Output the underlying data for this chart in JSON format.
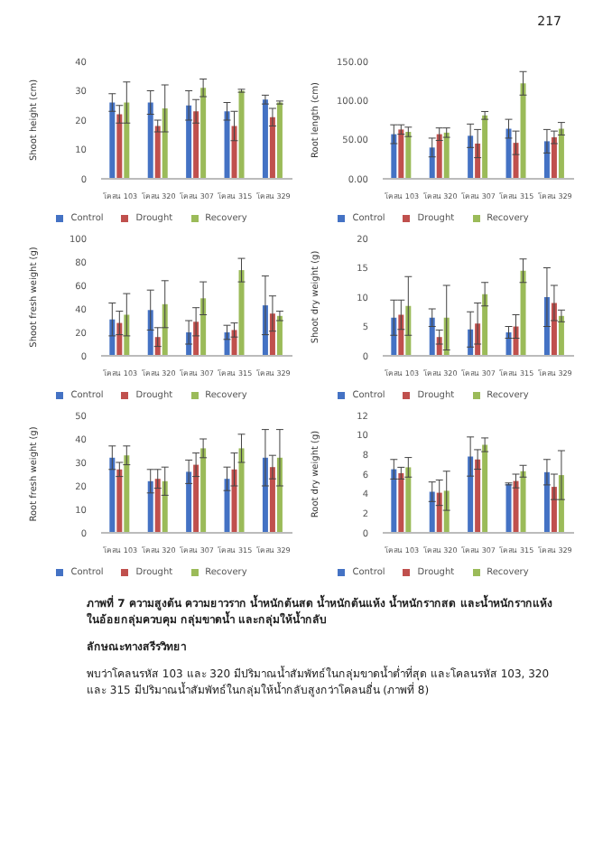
{
  "chart_data": [
    {
      "type": "bar",
      "ylabel": "Shoot height (cm)",
      "categories": [
        "โคลน 103",
        "โคลน 320",
        "โคลน 307",
        "โคลน 315",
        "โคลน 329"
      ],
      "ylim": [
        0,
        40
      ],
      "yticks": [
        0,
        10,
        20,
        30,
        40
      ],
      "legend": "bottom",
      "annotations": [
        "217"
      ],
      "series": [
        {
          "name": "Control",
          "color": "#4472c4",
          "values": [
            26,
            26,
            25,
            23,
            27
          ],
          "errors": [
            3,
            4,
            5,
            3,
            1.5
          ]
        },
        {
          "name": "Drought",
          "color": "#c0504d",
          "values": [
            22,
            18,
            23,
            18,
            21
          ],
          "errors": [
            3,
            2,
            4,
            5,
            3
          ]
        },
        {
          "name": "Recovery",
          "color": "#9bbb59",
          "values": [
            26,
            24,
            31,
            30,
            26
          ],
          "errors": [
            7,
            8,
            3,
            0.5,
            0.5
          ]
        }
      ]
    },
    {
      "type": "bar",
      "ylabel": "Root length (cm)",
      "categories": [
        "โคลน 103",
        "โคลน 320",
        "โคลน 307",
        "โคลน 315",
        "โคลน 329"
      ],
      "ylim": [
        0,
        150
      ],
      "yticks": [
        {
          "value": 0,
          "label": "0.00"
        },
        {
          "value": 50,
          "label": "50.00"
        },
        {
          "value": 100,
          "label": "100.00"
        },
        {
          "value": 150,
          "label": "150.00"
        }
      ],
      "legend": "bottom",
      "series": [
        {
          "name": "Control",
          "color": "#4472c4",
          "values": [
            57,
            40,
            55,
            64,
            48
          ],
          "errors": [
            12,
            12,
            15,
            12,
            15
          ]
        },
        {
          "name": "Drought",
          "color": "#c0504d",
          "values": [
            63,
            57,
            45,
            46,
            53
          ],
          "errors": [
            6,
            8,
            18,
            15,
            8
          ]
        },
        {
          "name": "Recovery",
          "color": "#9bbb59",
          "values": [
            60,
            59,
            81,
            122,
            64
          ],
          "errors": [
            6,
            6,
            5,
            15,
            8
          ]
        }
      ]
    },
    {
      "type": "bar",
      "ylabel": "Shoot fresh weight (g)",
      "categories": [
        "โคลน 103",
        "โคลน 320",
        "โคลน 307",
        "โคลน 315",
        "โคลน 329"
      ],
      "ylim": [
        0,
        100
      ],
      "yticks": [
        0,
        20,
        40,
        60,
        80,
        100
      ],
      "legend": "bottom",
      "series": [
        {
          "name": "Control",
          "color": "#4472c4",
          "values": [
            31,
            39,
            20,
            20,
            43
          ],
          "errors": [
            14,
            17,
            10,
            6,
            25
          ]
        },
        {
          "name": "Drought",
          "color": "#c0504d",
          "values": [
            28,
            16,
            29,
            22,
            36
          ],
          "errors": [
            10,
            8,
            12,
            6,
            15
          ]
        },
        {
          "name": "Recovery",
          "color": "#9bbb59",
          "values": [
            35,
            44,
            49,
            73,
            34
          ],
          "errors": [
            18,
            20,
            14,
            10,
            4
          ]
        }
      ]
    },
    {
      "type": "bar",
      "ylabel": "Shoot dry weight (g)",
      "categories": [
        "โคลน 103",
        "โคลน 320",
        "โคลน 307",
        "โคลน 315",
        "โคลน 329"
      ],
      "ylim": [
        0,
        20
      ],
      "yticks": [
        0,
        5,
        10,
        15,
        20
      ],
      "legend": "bottom",
      "series": [
        {
          "name": "Control",
          "color": "#4472c4",
          "values": [
            6.5,
            6.5,
            4.5,
            4,
            10
          ],
          "errors": [
            3,
            1.5,
            3,
            1,
            5
          ]
        },
        {
          "name": "Drought",
          "color": "#c0504d",
          "values": [
            7,
            3.2,
            5.5,
            5,
            9
          ],
          "errors": [
            2.5,
            1.2,
            3.5,
            2,
            3
          ]
        },
        {
          "name": "Recovery",
          "color": "#9bbb59",
          "values": [
            8.5,
            6.5,
            10.5,
            14.5,
            6.8
          ],
          "errors": [
            5,
            5.5,
            2,
            2,
            1
          ]
        }
      ]
    },
    {
      "type": "bar",
      "ylabel": "Root fresh weight (g)",
      "categories": [
        "โคลน 103",
        "โคลน 320",
        "โคลน 307",
        "โคลน 315",
        "โคลน 329"
      ],
      "ylim": [
        0,
        50
      ],
      "yticks": [
        0,
        10,
        20,
        30,
        40,
        50
      ],
      "legend": "bottom",
      "series": [
        {
          "name": "Control",
          "color": "#4472c4",
          "values": [
            32,
            22,
            26,
            23,
            32
          ],
          "errors": [
            5,
            5,
            5,
            5,
            12
          ]
        },
        {
          "name": "Drought",
          "color": "#c0504d",
          "values": [
            27,
            23,
            29,
            27,
            28
          ],
          "errors": [
            3,
            4,
            5,
            7,
            5
          ]
        },
        {
          "name": "Recovery",
          "color": "#9bbb59",
          "values": [
            33,
            22,
            36,
            36,
            32
          ],
          "errors": [
            4,
            6,
            4,
            6,
            12
          ]
        }
      ]
    },
    {
      "type": "bar",
      "ylabel": "Root dry weight (g)",
      "categories": [
        "โคลน 103",
        "โคลน 320",
        "โคลน 307",
        "โคลน 315",
        "โคลน 329"
      ],
      "ylim": [
        0,
        12
      ],
      "yticks": [
        0,
        2,
        4,
        6,
        8,
        10,
        12
      ],
      "legend": "bottom",
      "annotations": [
        "ภาพที่ 7 ความสูงต้น ความยาวราก น้ำหนักต้นสด น้ำหนักต้นแห้ง น้ำหนักรากสด และน้ำหนักรากแห้ง ในอ้อยกลุ่มควบคุม กลุ่มขาดน้ำ และกลุ่มให้น้ำกลับ",
        "ลักษณะทางสรีรวิทยา",
        "พบว่าโคลนรหัส 103 และ 320 มีปริมาณน้ำสัมพัทธ์ในกลุ่มขาดน้ำต่ำที่สุด และโคลนรหัส 103, 320 และ 315 มีปริมาณน้ำสัมพัทธ์ในกลุ่มให้น้ำกลับสูงกว่าโคลนอื่น (ภาพที่ 8)"
      ],
      "series": [
        {
          "name": "Control",
          "color": "#4472c4",
          "values": [
            6.5,
            4.2,
            7.8,
            5,
            6.2
          ],
          "errors": [
            1,
            1,
            2,
            0.1,
            1.3
          ]
        },
        {
          "name": "Drought",
          "color": "#c0504d",
          "values": [
            6.1,
            4.1,
            7.5,
            5.3,
            4.7
          ],
          "errors": [
            0.6,
            1.3,
            1,
            0.7,
            1.3
          ]
        },
        {
          "name": "Recovery",
          "color": "#9bbb59",
          "values": [
            6.7,
            4.3,
            9,
            6.3,
            5.9
          ],
          "errors": [
            1,
            2,
            0.7,
            0.6,
            2.5
          ]
        }
      ]
    }
  ]
}
